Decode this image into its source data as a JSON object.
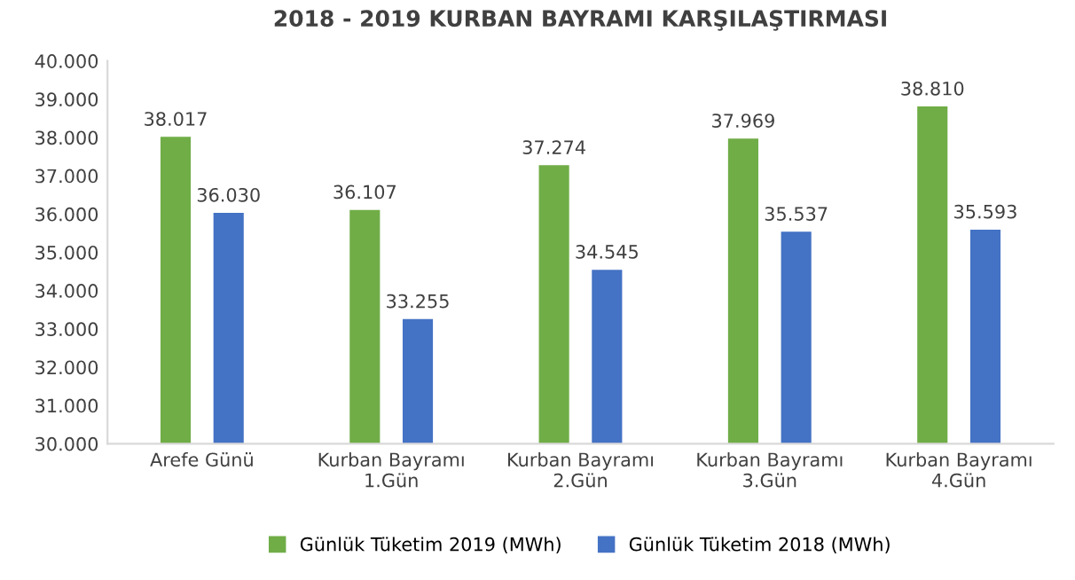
{
  "chart_data": {
    "type": "bar",
    "title": "2018 - 2019 KURBAN BAYRAMI KARŞILAŞTIRMASI",
    "categories": [
      "Arefe Günü",
      "Kurban Bayramı\n1.Gün",
      "Kurban Bayramı\n2.Gün",
      "Kurban Bayramı\n3.Gün",
      "Kurban Bayramı\n4.Gün"
    ],
    "series": [
      {
        "name": "Günlük Tüketim 2019 (MWh)",
        "color": "#70ad47",
        "values": [
          38017,
          36107,
          37274,
          37969,
          38810
        ],
        "value_labels": [
          "38.017",
          "36.107",
          "37.274",
          "37.969",
          "38.810"
        ]
      },
      {
        "name": "Günlük Tüketim 2018 (MWh)",
        "color": "#4472c4",
        "values": [
          36030,
          33255,
          34545,
          35537,
          35593
        ],
        "value_labels": [
          "36.030",
          "33.255",
          "34.545",
          "35.537",
          "35.593"
        ]
      }
    ],
    "ylim": [
      30000,
      40000
    ],
    "yticks": [
      {
        "value": 30000,
        "label": "30.000"
      },
      {
        "value": 31000,
        "label": "31.000"
      },
      {
        "value": 32000,
        "label": "32.000"
      },
      {
        "value": 33000,
        "label": "33.000"
      },
      {
        "value": 34000,
        "label": "34.000"
      },
      {
        "value": 35000,
        "label": "35.000"
      },
      {
        "value": 36000,
        "label": "36.000"
      },
      {
        "value": 37000,
        "label": "37.000"
      },
      {
        "value": 38000,
        "label": "38.000"
      },
      {
        "value": 39000,
        "label": "39.000"
      },
      {
        "value": 40000,
        "label": "40.000"
      }
    ],
    "legend": "bottom"
  }
}
